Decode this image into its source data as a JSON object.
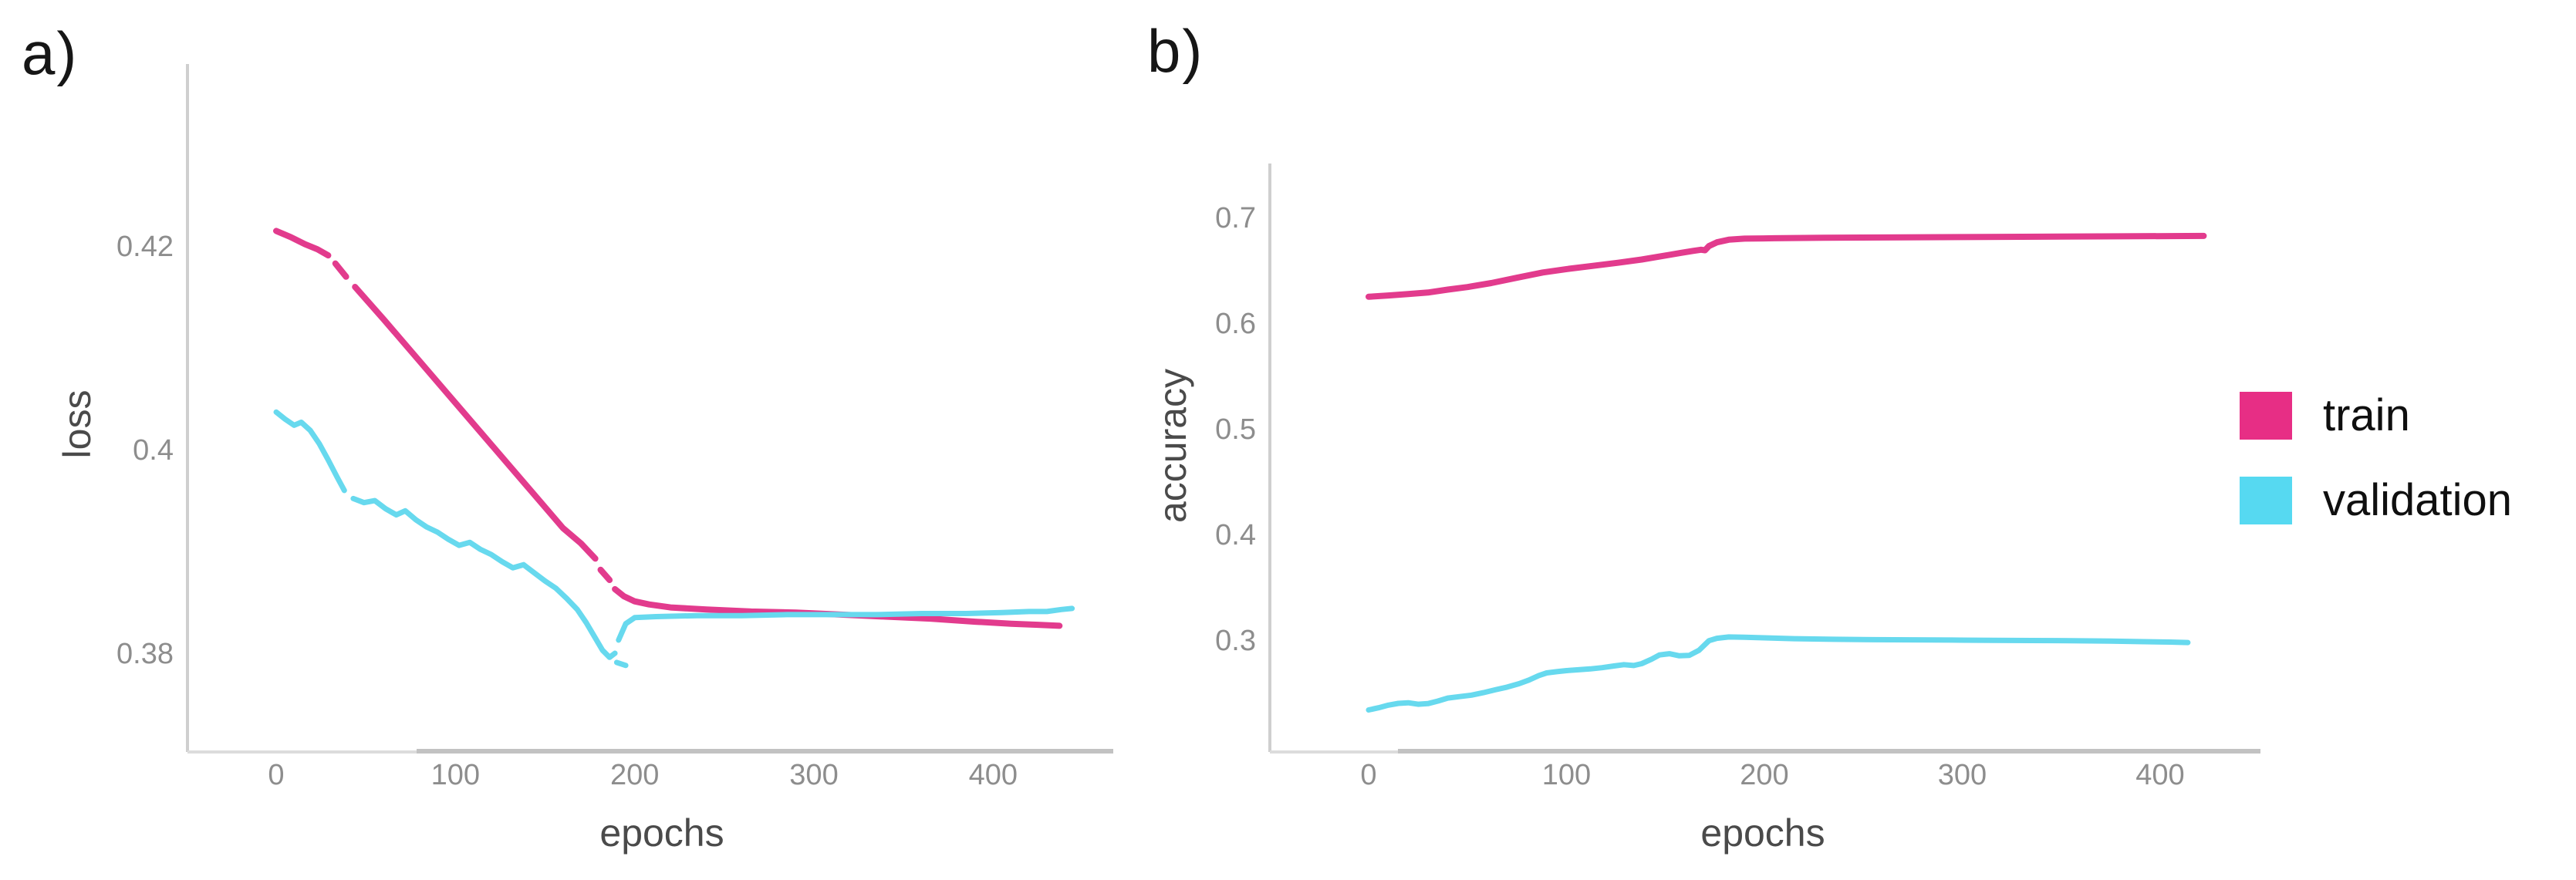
{
  "figure": {
    "background": "#ffffff",
    "tick_color": "#8d8d8d",
    "axis_color": "#cfcfcf",
    "axis_dark_color": "#c2c2c2"
  },
  "chart_data": [
    {
      "type": "line",
      "panel_label": "a)",
      "xlabel": "epochs",
      "ylabel": "loss",
      "grid": false,
      "xlim": [
        -49.5,
        467
      ],
      "ylim": [
        0.3703,
        0.4379
      ],
      "x_ticks": [
        {
          "label": "0",
          "value": 0
        },
        {
          "label": "100",
          "value": 100
        },
        {
          "label": "200",
          "value": 200
        },
        {
          "label": "300",
          "value": 300
        },
        {
          "label": "400",
          "value": 400
        }
      ],
      "y_ticks": [
        {
          "label": "0.42",
          "value": 0.42
        },
        {
          "label": "0.4",
          "value": 0.4
        },
        {
          "label": "0.38",
          "value": 0.38
        }
      ],
      "series": [
        {
          "name": "train",
          "color": "#e23b8d",
          "width": 8,
          "segments": [
            [
              [
                0,
                0.4215
              ],
              [
                8,
                0.4209
              ],
              [
                16,
                0.4202
              ],
              [
                23,
                0.4197
              ],
              [
                29,
                0.4191
              ]
            ],
            [
              [
                33,
                0.4183
              ],
              [
                39,
                0.417
              ]
            ],
            [
              [
                44,
                0.416
              ],
              [
                60,
                0.4128
              ],
              [
                80,
                0.4087
              ],
              [
                100,
                0.4046
              ],
              [
                120,
                0.4005
              ],
              [
                140,
                0.3964
              ],
              [
                160,
                0.3923
              ],
              [
                170,
                0.3908
              ],
              [
                178,
                0.3893
              ]
            ],
            [
              [
                181,
                0.3882
              ],
              [
                186,
                0.3872
              ]
            ],
            [
              [
                189,
                0.3863
              ],
              [
                194,
                0.3856
              ],
              [
                200,
                0.3851
              ],
              [
                208,
                0.3848
              ],
              [
                220,
                0.3845
              ],
              [
                240,
                0.3843
              ],
              [
                265,
                0.3841
              ],
              [
                290,
                0.384
              ],
              [
                315,
                0.3838
              ],
              [
                340,
                0.3836
              ],
              [
                365,
                0.3834
              ],
              [
                390,
                0.3831
              ],
              [
                410,
                0.3829
              ],
              [
                425,
                0.3828
              ],
              [
                437,
                0.3827
              ]
            ]
          ]
        },
        {
          "name": "validation",
          "color": "#67d9ee",
          "width": 7,
          "segments": [
            [
              [
                0,
                0.4037
              ],
              [
                5,
                0.403
              ],
              [
                10,
                0.4024
              ],
              [
                14,
                0.4027
              ],
              [
                19,
                0.4019
              ],
              [
                24,
                0.4006
              ],
              [
                29,
                0.399
              ],
              [
                34,
                0.3973
              ],
              [
                38,
                0.396
              ]
            ],
            [
              [
                43,
                0.3952
              ],
              [
                49,
                0.3948
              ],
              [
                55,
                0.395
              ],
              [
                61,
                0.3942
              ],
              [
                67,
                0.3936
              ],
              [
                72,
                0.394
              ],
              [
                78,
                0.3931
              ],
              [
                84,
                0.3924
              ],
              [
                90,
                0.3919
              ],
              [
                96,
                0.3912
              ],
              [
                102,
                0.3906
              ],
              [
                108,
                0.3909
              ],
              [
                114,
                0.3902
              ],
              [
                120,
                0.3897
              ],
              [
                126,
                0.389
              ],
              [
                132,
                0.3884
              ],
              [
                138,
                0.3887
              ],
              [
                144,
                0.3879
              ],
              [
                150,
                0.3871
              ],
              [
                156,
                0.3864
              ],
              [
                162,
                0.3854
              ],
              [
                168,
                0.3843
              ],
              [
                173,
                0.383
              ],
              [
                178,
                0.3815
              ],
              [
                182,
                0.3803
              ],
              [
                186,
                0.3796
              ],
              [
                189,
                0.38
              ]
            ],
            [
              [
                190,
                0.3791
              ],
              [
                195,
                0.3788
              ]
            ],
            [
              [
                191,
                0.3813
              ],
              [
                195,
                0.3829
              ],
              [
                200,
                0.3835
              ],
              [
                212,
                0.3836
              ],
              [
                235,
                0.3837
              ],
              [
                260,
                0.3837
              ],
              [
                285,
                0.3838
              ],
              [
                310,
                0.3838
              ],
              [
                335,
                0.3838
              ],
              [
                360,
                0.3839
              ],
              [
                385,
                0.3839
              ],
              [
                405,
                0.384
              ],
              [
                420,
                0.3841
              ],
              [
                430,
                0.3841
              ],
              [
                438,
                0.3843
              ],
              [
                444,
                0.3844
              ]
            ]
          ]
        }
      ]
    },
    {
      "type": "line",
      "panel_label": "b)",
      "xlabel": "epochs",
      "ylabel": "accuracy",
      "grid": false,
      "xlim": [
        -49.9,
        450.7
      ],
      "ylim": [
        0.1942,
        0.7511
      ],
      "x_ticks": [
        {
          "label": "0",
          "value": 0
        },
        {
          "label": "100",
          "value": 100
        },
        {
          "label": "200",
          "value": 200
        },
        {
          "label": "300",
          "value": 300
        },
        {
          "label": "400",
          "value": 400
        }
      ],
      "y_ticks": [
        {
          "label": "0.7",
          "value": 0.7
        },
        {
          "label": "0.6",
          "value": 0.6
        },
        {
          "label": "0.5",
          "value": 0.5
        },
        {
          "label": "0.4",
          "value": 0.4
        },
        {
          "label": "0.3",
          "value": 0.3
        }
      ],
      "series": [
        {
          "name": "train",
          "color": "#e23b8d",
          "width": 8,
          "segments": [
            [
              [
                0,
                0.625
              ],
              [
                10,
                0.6262
              ],
              [
                20,
                0.6275
              ],
              [
                30,
                0.629
              ],
              [
                40,
                0.6318
              ],
              [
                50,
                0.6342
              ],
              [
                62,
                0.638
              ],
              [
                75,
                0.643
              ],
              [
                88,
                0.648
              ],
              [
                100,
                0.6512
              ],
              [
                113,
                0.6542
              ],
              [
                126,
                0.6572
              ],
              [
                138,
                0.6602
              ],
              [
                150,
                0.664
              ],
              [
                158,
                0.6666
              ],
              [
                164,
                0.6684
              ],
              [
                168,
                0.6695
              ],
              [
                170,
                0.669
              ],
              [
                172,
                0.673
              ],
              [
                176,
                0.6765
              ],
              [
                182,
                0.679
              ],
              [
                190,
                0.68
              ],
              [
                205,
                0.6804
              ],
              [
                230,
                0.6808
              ],
              [
                260,
                0.6811
              ],
              [
                300,
                0.6815
              ],
              [
                340,
                0.6818
              ],
              [
                380,
                0.6822
              ],
              [
                405,
                0.6824
              ],
              [
                422,
                0.6826
              ]
            ]
          ]
        },
        {
          "name": "validation",
          "color": "#67d9ee",
          "width": 7,
          "segments": [
            [
              [
                0,
                0.234
              ],
              [
                5,
                0.236
              ],
              [
                10,
                0.2385
              ],
              [
                15,
                0.2402
              ],
              [
                20,
                0.2408
              ],
              [
                25,
                0.2394
              ],
              [
                30,
                0.24
              ],
              [
                35,
                0.2424
              ],
              [
                40,
                0.2452
              ],
              [
                46,
                0.2466
              ],
              [
                52,
                0.248
              ],
              [
                58,
                0.2503
              ],
              [
                64,
                0.253
              ],
              [
                70,
                0.2556
              ],
              [
                76,
                0.2588
              ],
              [
                81,
                0.2622
              ],
              [
                86,
                0.2665
              ],
              [
                90,
                0.269
              ],
              [
                95,
                0.2702
              ],
              [
                100,
                0.2712
              ],
              [
                106,
                0.272
              ],
              [
                112,
                0.2728
              ],
              [
                118,
                0.274
              ],
              [
                124,
                0.2756
              ],
              [
                129,
                0.2768
              ],
              [
                134,
                0.276
              ],
              [
                138,
                0.2778
              ],
              [
                143,
                0.282
              ],
              [
                147,
                0.286
              ],
              [
                152,
                0.2872
              ],
              [
                157,
                0.2852
              ],
              [
                162,
                0.2856
              ],
              [
                167,
                0.2905
              ],
              [
                172,
                0.2995
              ],
              [
                176,
                0.3018
              ],
              [
                182,
                0.303
              ],
              [
                190,
                0.3028
              ],
              [
                200,
                0.3022
              ],
              [
                215,
                0.3014
              ],
              [
                235,
                0.3008
              ],
              [
                255,
                0.3005
              ],
              [
                275,
                0.3003
              ],
              [
                295,
                0.3001
              ],
              [
                315,
                0.2999
              ],
              [
                335,
                0.2997
              ],
              [
                355,
                0.2995
              ],
              [
                375,
                0.2991
              ],
              [
                392,
                0.2986
              ],
              [
                405,
                0.2982
              ],
              [
                414,
                0.2978
              ]
            ]
          ]
        }
      ]
    }
  ],
  "legend": {
    "position": "right-center",
    "items": [
      {
        "label": "train",
        "color": "#e72e85"
      },
      {
        "label": "validation",
        "color": "#56d9f1"
      }
    ]
  }
}
